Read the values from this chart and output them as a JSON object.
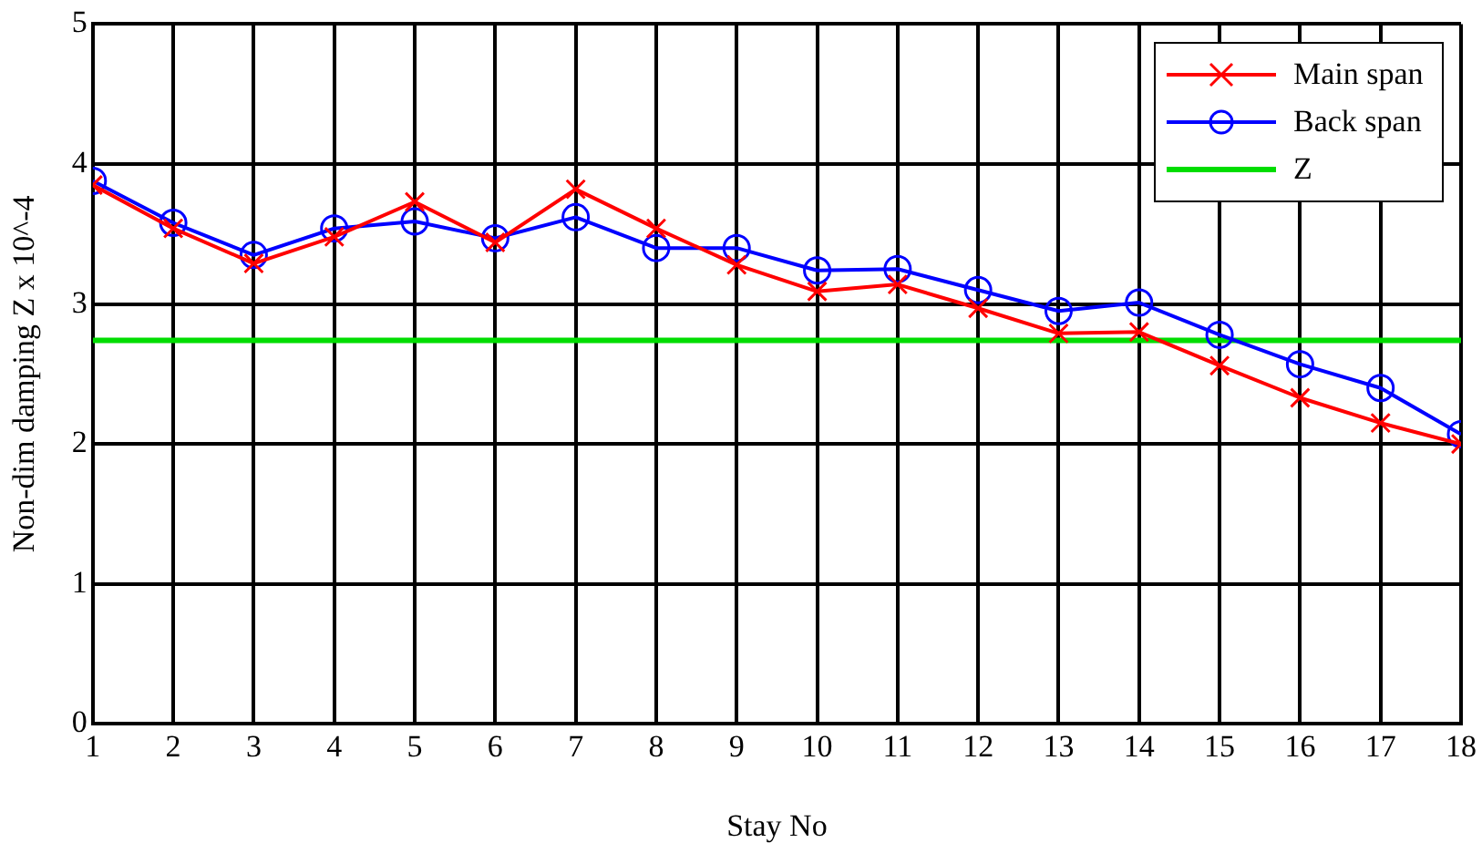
{
  "chart_data": {
    "type": "line",
    "xlabel": "Stay No",
    "ylabel": "Non-dim damping Z x 10^-4",
    "x": [
      1,
      2,
      3,
      4,
      5,
      6,
      7,
      8,
      9,
      10,
      11,
      12,
      13,
      14,
      15,
      16,
      17,
      18
    ],
    "series": [
      {
        "name": "Main span",
        "color": "#ff0000",
        "marker": "cross",
        "values": [
          3.85,
          3.54,
          3.29,
          3.48,
          3.73,
          3.44,
          3.82,
          3.54,
          3.28,
          3.09,
          3.14,
          2.97,
          2.79,
          2.8,
          2.56,
          2.33,
          2.15,
          2.0
        ]
      },
      {
        "name": "Back span",
        "color": "#0000ff",
        "marker": "circle",
        "values": [
          3.88,
          3.58,
          3.35,
          3.54,
          3.59,
          3.47,
          3.62,
          3.4,
          3.4,
          3.24,
          3.25,
          3.1,
          2.95,
          3.01,
          2.78,
          2.57,
          2.4,
          2.07
        ]
      },
      {
        "name": "Z",
        "color": "#00dd00",
        "marker": "none",
        "x": [
          1,
          18
        ],
        "values": [
          2.74,
          2.74
        ]
      }
    ],
    "xlim": [
      1,
      18
    ],
    "xticks": [
      1,
      2,
      3,
      4,
      5,
      6,
      7,
      8,
      9,
      10,
      11,
      12,
      13,
      14,
      15,
      16,
      17,
      18
    ],
    "ylim": [
      0,
      5
    ],
    "yticks": [
      0,
      1,
      2,
      3,
      4,
      5
    ],
    "grid": true,
    "legend": "top right",
    "line_style": "solid"
  }
}
